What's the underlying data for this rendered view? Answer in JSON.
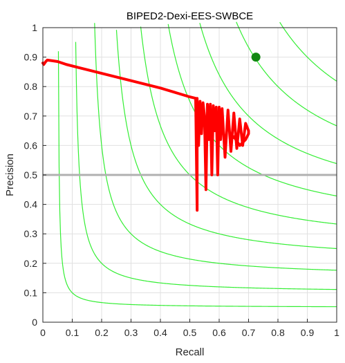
{
  "chart_data": {
    "type": "line",
    "title": "BIPED2-Dexi-EES-SWBCE",
    "xlabel": "Recall",
    "ylabel": "Precision",
    "xlim": [
      0,
      1
    ],
    "ylim": [
      0,
      1
    ],
    "xticks": [
      "0",
      "0.1",
      "0.2",
      "0.3",
      "0.4",
      "0.5",
      "0.6",
      "0.7",
      "0.8",
      "0.9",
      "1"
    ],
    "yticks": [
      "0",
      "0.1",
      "0.2",
      "0.3",
      "0.4",
      "0.5",
      "0.6",
      "0.7",
      "0.8",
      "0.9",
      "1"
    ],
    "grid": true,
    "colors": {
      "pr_curve": "#ff0000",
      "iso_f": "#33ee33",
      "baseline": "#b0b0b0",
      "best_point": "#118811",
      "grid": "#e0e0e0"
    },
    "iso_f_levels": [
      0.1,
      0.2,
      0.3,
      0.4,
      0.5,
      0.6,
      0.7,
      0.8,
      0.9
    ],
    "baseline_precision": 0.5,
    "best_point": {
      "recall": 0.725,
      "precision": 0.9
    },
    "pr_curve": {
      "x": [
        0.0,
        0.003,
        0.01,
        0.015,
        0.03,
        0.05,
        0.08,
        0.12,
        0.2,
        0.3,
        0.4,
        0.45,
        0.5,
        0.52,
        0.525,
        0.525,
        0.53,
        0.535,
        0.54,
        0.545,
        0.55,
        0.555,
        0.56,
        0.565,
        0.57,
        0.575,
        0.58,
        0.585,
        0.59,
        0.595,
        0.6,
        0.605,
        0.61,
        0.62,
        0.63,
        0.64,
        0.65,
        0.66,
        0.67,
        0.68,
        0.69,
        0.7,
        0.7,
        0.69,
        0.68,
        0.67,
        0.66,
        0.65,
        0.64
      ],
      "y": [
        0.88,
        0.875,
        0.885,
        0.89,
        0.888,
        0.885,
        0.875,
        0.865,
        0.845,
        0.82,
        0.795,
        0.78,
        0.765,
        0.76,
        0.38,
        0.76,
        0.6,
        0.75,
        0.64,
        0.745,
        0.7,
        0.45,
        0.74,
        0.62,
        0.74,
        0.5,
        0.735,
        0.65,
        0.73,
        0.5,
        0.73,
        0.62,
        0.725,
        0.56,
        0.72,
        0.58,
        0.71,
        0.59,
        0.69,
        0.6,
        0.675,
        0.65,
        0.64,
        0.62,
        0.61,
        0.6,
        0.615,
        0.63,
        0.62
      ]
    }
  }
}
